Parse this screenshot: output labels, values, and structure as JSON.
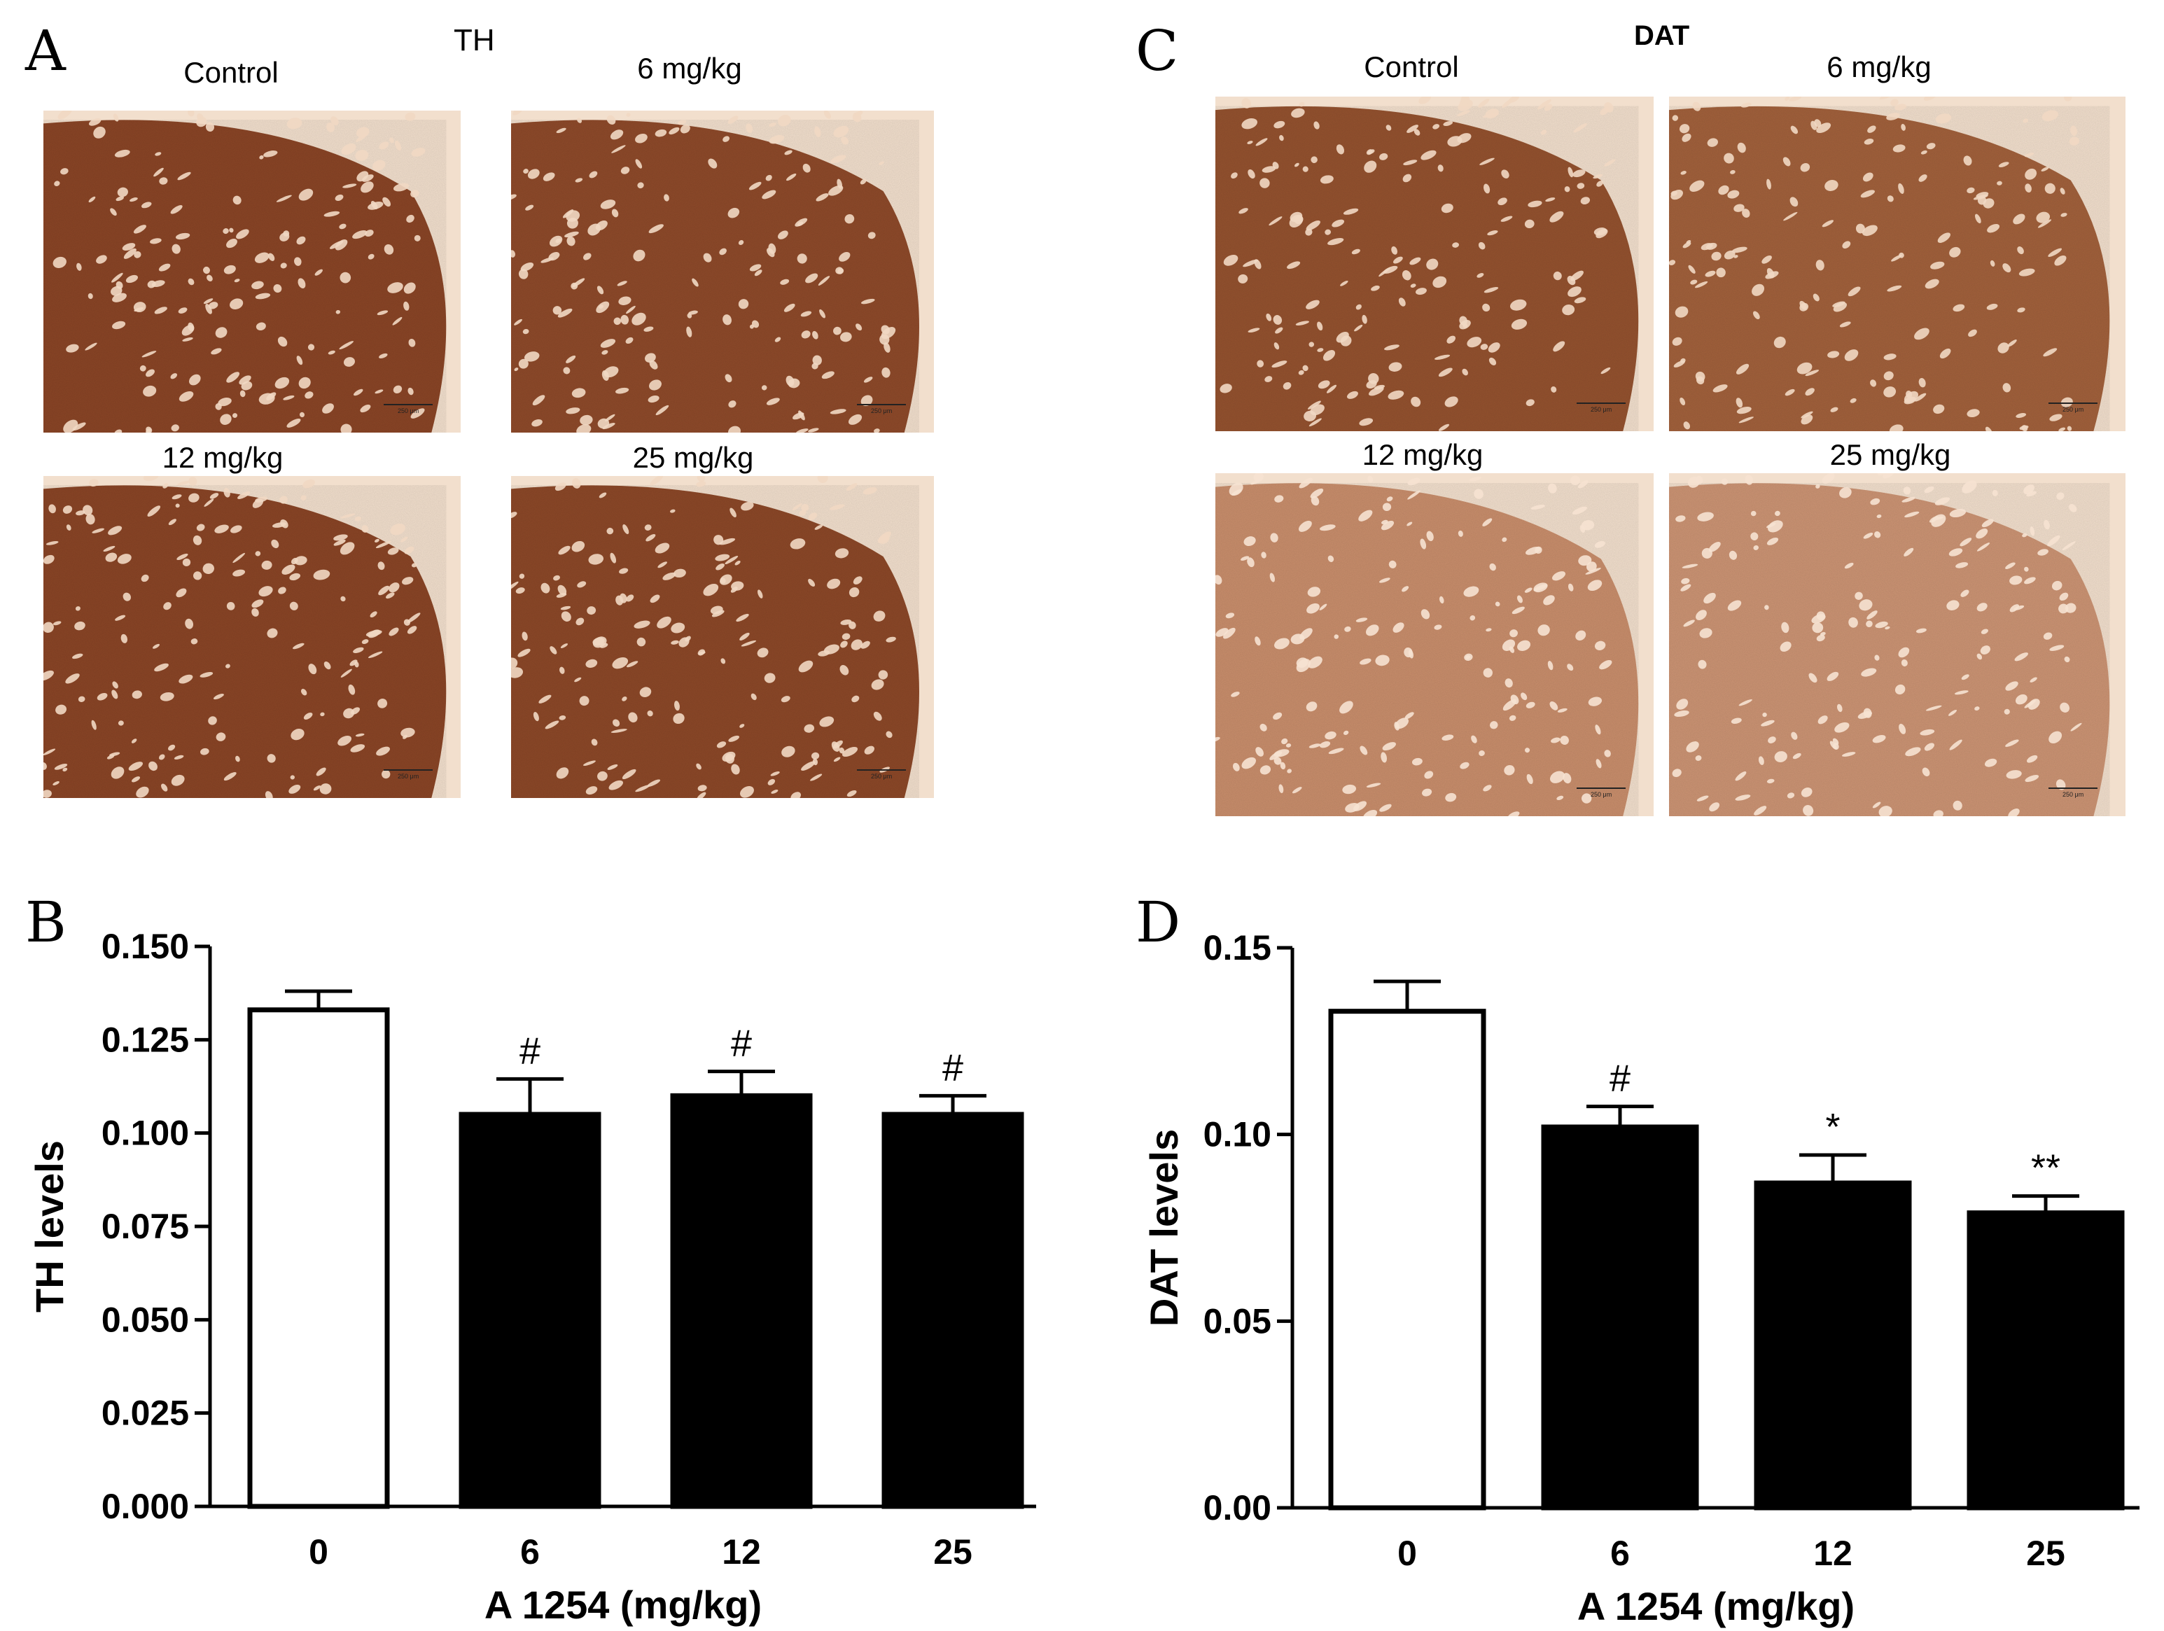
{
  "panels": {
    "A": {
      "letter": "A",
      "title": "TH",
      "images": [
        {
          "label": "Control",
          "stain": "dark",
          "color": "#8a4526"
        },
        {
          "label": "6 mg/kg",
          "stain": "dark",
          "color": "#8e4a2a"
        },
        {
          "label": "12 mg/kg",
          "stain": "dark",
          "color": "#8a4526"
        },
        {
          "label": "25 mg/kg",
          "stain": "dark",
          "color": "#8c4828"
        }
      ],
      "scalebar": "250 μm"
    },
    "C": {
      "letter": "C",
      "title": "DAT",
      "images": [
        {
          "label": "Control",
          "stain": "dark",
          "color": "#94522f"
        },
        {
          "label": "6 mg/kg",
          "stain": "medium",
          "color": "#a2613c"
        },
        {
          "label": "12 mg/kg",
          "stain": "light",
          "color": "#c98e6c"
        },
        {
          "label": "25 mg/kg",
          "stain": "light",
          "color": "#cc9474"
        }
      ],
      "scalebar": "250 μm"
    },
    "B": {
      "letter": "B"
    },
    "D": {
      "letter": "D"
    }
  },
  "chart_data": [
    {
      "type": "bar",
      "panel": "B",
      "categories": [
        "0",
        "6",
        "12",
        "25"
      ],
      "values": [
        0.133,
        0.105,
        0.11,
        0.105
      ],
      "errors": [
        0.005,
        0.0095,
        0.0065,
        0.005
      ],
      "fills": [
        "#ffffff",
        "#000000",
        "#000000",
        "#000000"
      ],
      "annotations": [
        "",
        "#",
        "#",
        "#"
      ],
      "ylim": [
        0,
        0.15
      ],
      "yticks": [
        "0.000",
        "0.025",
        "0.050",
        "0.075",
        "0.100",
        "0.125",
        "0.150"
      ],
      "ytick_values": [
        0,
        0.025,
        0.05,
        0.075,
        0.1,
        0.125,
        0.15
      ],
      "xlabel": "A 1254 (mg/kg)",
      "ylabel": "TH levels"
    },
    {
      "type": "bar",
      "panel": "D",
      "categories": [
        "0",
        "6",
        "12",
        "25"
      ],
      "values": [
        0.133,
        0.102,
        0.087,
        0.079
      ],
      "errors": [
        0.008,
        0.0055,
        0.0075,
        0.0045
      ],
      "fills": [
        "#ffffff",
        "#000000",
        "#000000",
        "#000000"
      ],
      "annotations": [
        "",
        "#",
        "*",
        "**"
      ],
      "ylim": [
        0,
        0.15
      ],
      "yticks": [
        "0.00",
        "0.05",
        "0.10",
        "0.15"
      ],
      "ytick_values": [
        0,
        0.05,
        0.1,
        0.15
      ],
      "xlabel": "A 1254 (mg/kg)",
      "ylabel": "DAT levels"
    }
  ]
}
